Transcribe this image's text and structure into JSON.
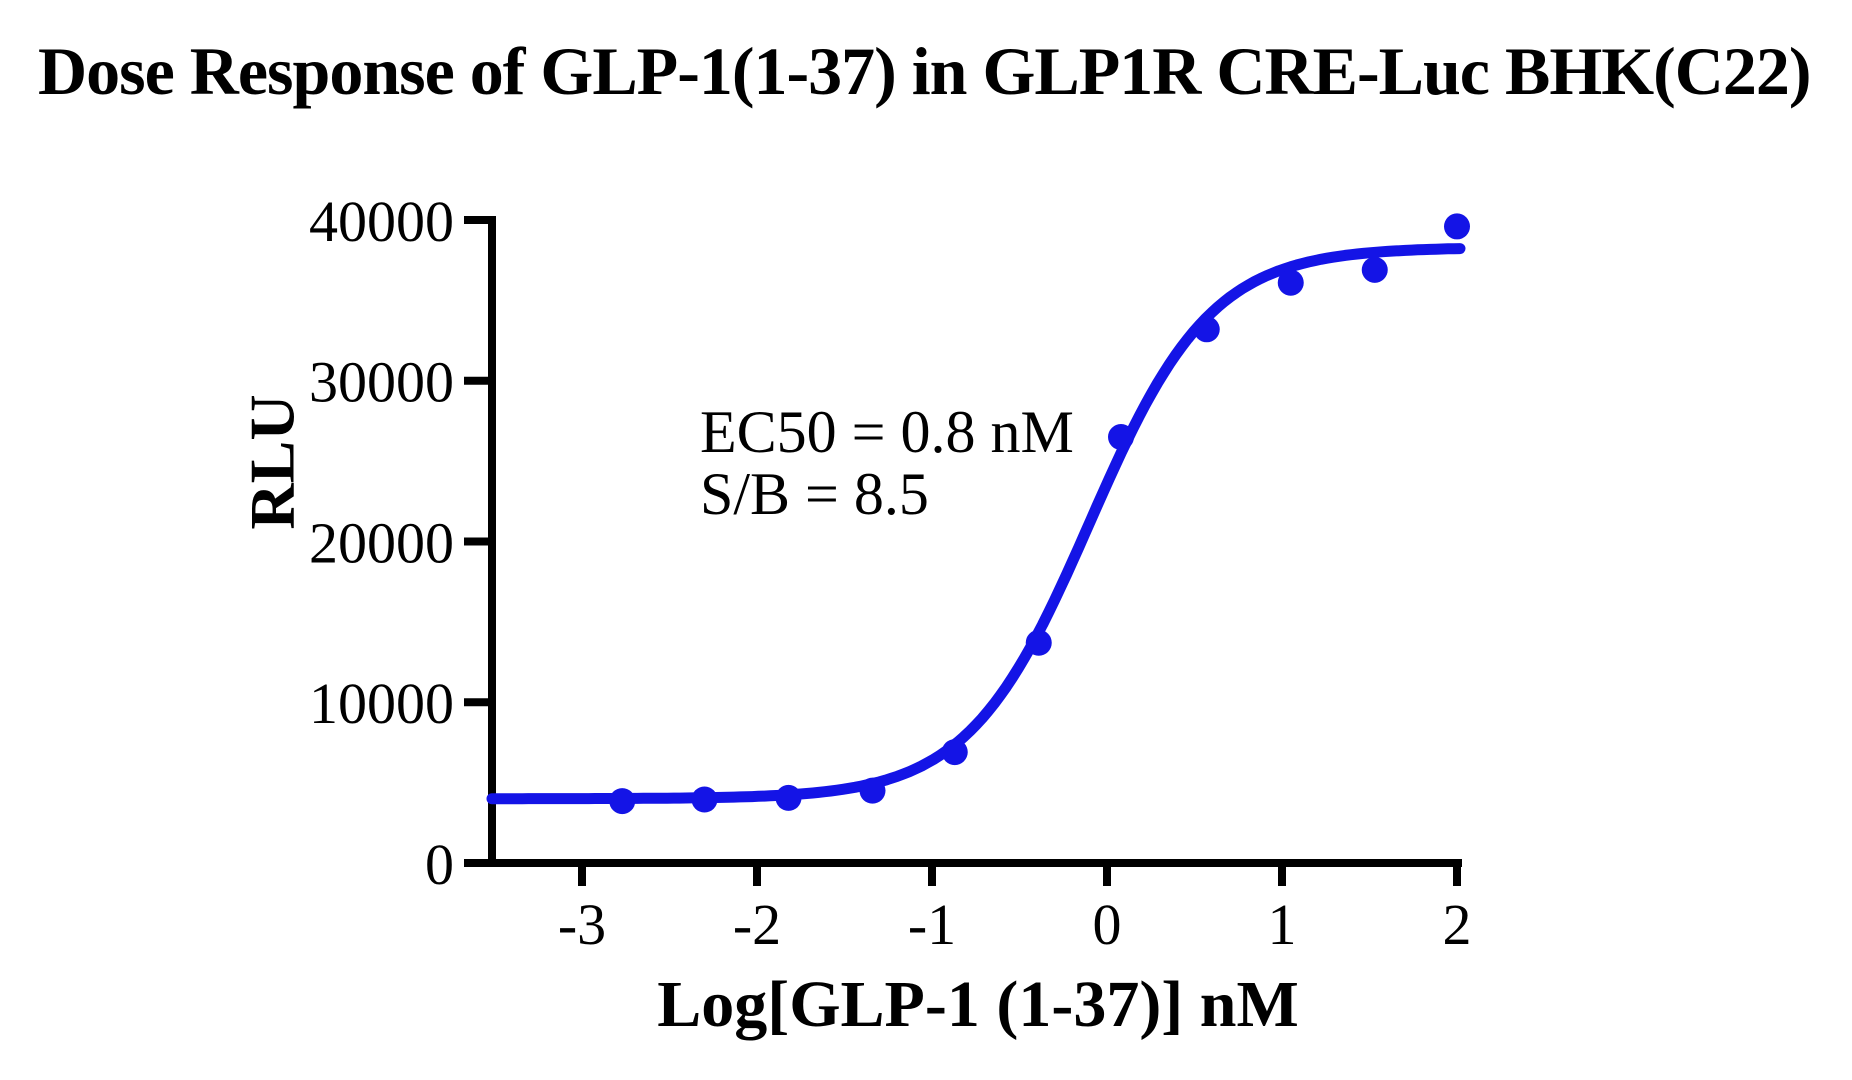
{
  "chart_data": {
    "type": "scatter",
    "title": "Dose Response of GLP-1(1-37) in GLP1R CRE-Luc BHK(C22)",
    "xlabel": "Log[GLP-1 (1-37)] nM",
    "ylabel": "RLU",
    "xlim": [
      -3.5,
      2.0
    ],
    "ylim": [
      0,
      40000
    ],
    "xticks": [
      -3,
      -2,
      -1,
      0,
      1,
      2
    ],
    "yticks": [
      0,
      10000,
      20000,
      30000,
      40000
    ],
    "grid": false,
    "legend": "none",
    "annotations": [
      {
        "text": "EC50 = 0.8 nM"
      },
      {
        "text": "S/B = 8.5"
      }
    ],
    "series": [
      {
        "name": "GLP-1 (1-37)",
        "color": "#1414e6",
        "marker": "circle",
        "points": [
          {
            "log_conc": -2.77,
            "rlu": 3850
          },
          {
            "log_conc": -2.3,
            "rlu": 3950
          },
          {
            "log_conc": -1.82,
            "rlu": 4050
          },
          {
            "log_conc": -1.34,
            "rlu": 4500
          },
          {
            "log_conc": -0.87,
            "rlu": 6900
          },
          {
            "log_conc": -0.39,
            "rlu": 13700
          },
          {
            "log_conc": 0.08,
            "rlu": 26500
          },
          {
            "log_conc": 0.57,
            "rlu": 33200
          },
          {
            "log_conc": 1.05,
            "rlu": 36100
          },
          {
            "log_conc": 1.53,
            "rlu": 36900
          },
          {
            "log_conc": 2.0,
            "rlu": 39600
          }
        ],
        "fit_curve": {
          "model": "4PL",
          "bottom_rlu": 4000,
          "top_rlu": 38300,
          "log_ec50": -0.1,
          "hill_slope": 1.25
        }
      }
    ],
    "axis_color": "#000000",
    "background": "#ffffff"
  }
}
